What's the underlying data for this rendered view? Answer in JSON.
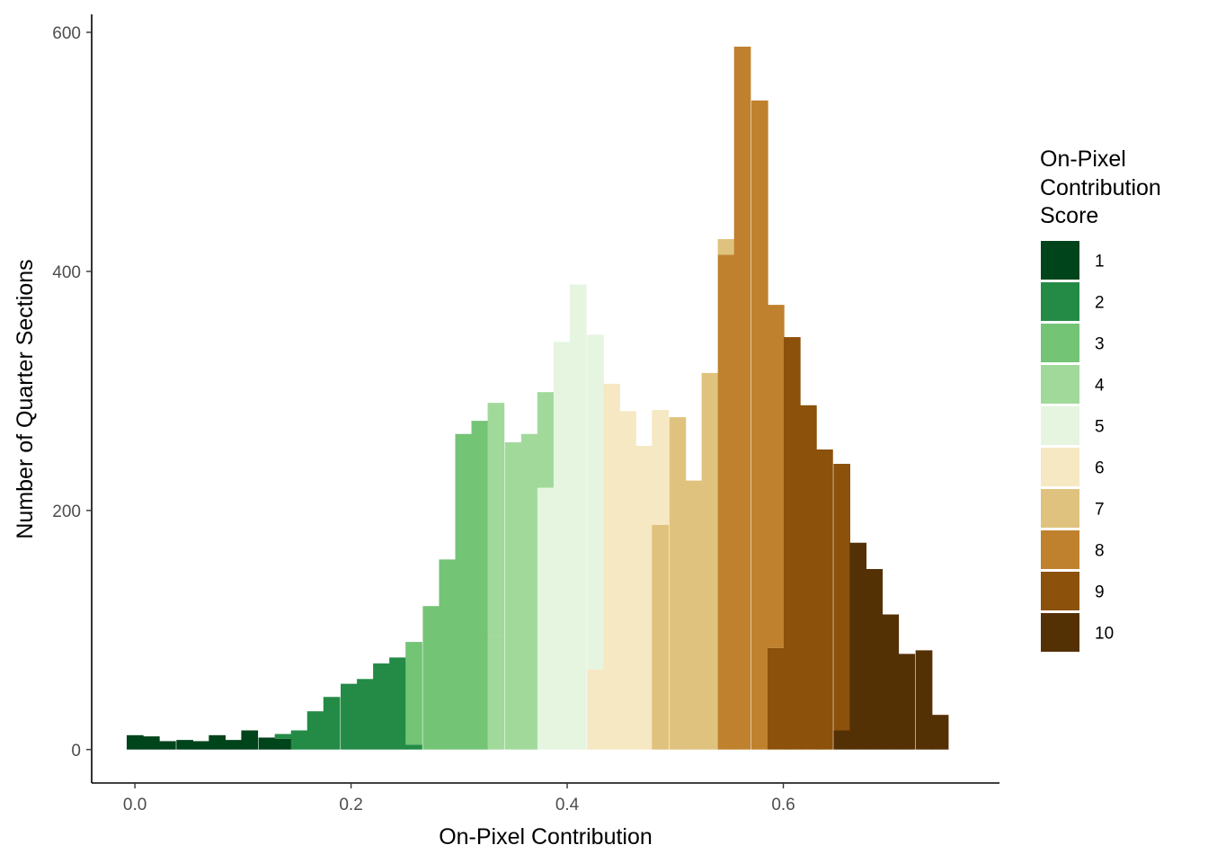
{
  "chart_data": {
    "type": "bar",
    "subtype": "stacked-histogram",
    "xlabel": "On-Pixel Contribution",
    "ylabel": "Number of Quarter Sections",
    "xlim": [
      -0.04,
      0.8
    ],
    "ylim": [
      -28,
      615
    ],
    "x_ticks": [
      0.0,
      0.2,
      0.4,
      0.6
    ],
    "x_tick_labels": [
      "0.0",
      "0.2",
      "0.4",
      "0.6"
    ],
    "y_ticks": [
      0,
      200,
      400,
      600
    ],
    "y_tick_labels": [
      "0",
      "200",
      "400",
      "600"
    ],
    "bin_width": 0.0152,
    "grid": false,
    "legend": {
      "title_lines": [
        "On-Pixel",
        "Contribution",
        "Score"
      ],
      "position": "right",
      "items": [
        {
          "label": "1",
          "color": "#00441b"
        },
        {
          "label": "2",
          "color": "#238b45"
        },
        {
          "label": "3",
          "color": "#74c476"
        },
        {
          "label": "4",
          "color": "#a1d99b"
        },
        {
          "label": "5",
          "color": "#e5f5e0"
        },
        {
          "label": "6",
          "color": "#f6e8c3"
        },
        {
          "label": "7",
          "color": "#dfc27d"
        },
        {
          "label": "8",
          "color": "#bf812d"
        },
        {
          "label": "9",
          "color": "#8c510a"
        },
        {
          "label": "10",
          "color": "#543005"
        }
      ]
    },
    "bins": [
      {
        "x": 0.0,
        "segments": [
          {
            "score": 1,
            "count": 12
          }
        ]
      },
      {
        "x": 0.015,
        "segments": [
          {
            "score": 1,
            "count": 11
          }
        ]
      },
      {
        "x": 0.03,
        "segments": [
          {
            "score": 1,
            "count": 7
          }
        ]
      },
      {
        "x": 0.046,
        "segments": [
          {
            "score": 1,
            "count": 8
          }
        ]
      },
      {
        "x": 0.061,
        "segments": [
          {
            "score": 1,
            "count": 7
          }
        ]
      },
      {
        "x": 0.076,
        "segments": [
          {
            "score": 1,
            "count": 12
          }
        ]
      },
      {
        "x": 0.091,
        "segments": [
          {
            "score": 1,
            "count": 8
          }
        ]
      },
      {
        "x": 0.106,
        "segments": [
          {
            "score": 1,
            "count": 16
          }
        ]
      },
      {
        "x": 0.122,
        "segments": [
          {
            "score": 1,
            "count": 10
          }
        ]
      },
      {
        "x": 0.137,
        "segments": [
          {
            "score": 1,
            "count": 9
          },
          {
            "score": 2,
            "count": 4
          }
        ]
      },
      {
        "x": 0.152,
        "segments": [
          {
            "score": 2,
            "count": 16
          }
        ]
      },
      {
        "x": 0.167,
        "segments": [
          {
            "score": 2,
            "count": 32
          }
        ]
      },
      {
        "x": 0.182,
        "segments": [
          {
            "score": 2,
            "count": 44
          }
        ]
      },
      {
        "x": 0.198,
        "segments": [
          {
            "score": 2,
            "count": 55
          }
        ]
      },
      {
        "x": 0.213,
        "segments": [
          {
            "score": 2,
            "count": 59
          }
        ]
      },
      {
        "x": 0.228,
        "segments": [
          {
            "score": 2,
            "count": 72
          }
        ]
      },
      {
        "x": 0.243,
        "segments": [
          {
            "score": 2,
            "count": 77
          }
        ]
      },
      {
        "x": 0.258,
        "segments": [
          {
            "score": 2,
            "count": 4
          },
          {
            "score": 3,
            "count": 86
          }
        ]
      },
      {
        "x": 0.274,
        "segments": [
          {
            "score": 3,
            "count": 120
          }
        ]
      },
      {
        "x": 0.289,
        "segments": [
          {
            "score": 3,
            "count": 159
          }
        ]
      },
      {
        "x": 0.304,
        "segments": [
          {
            "score": 3,
            "count": 264
          }
        ]
      },
      {
        "x": 0.319,
        "segments": [
          {
            "score": 3,
            "count": 275
          }
        ]
      },
      {
        "x": 0.334,
        "segments": [
          {
            "score": 4,
            "count": 95
          },
          {
            "score": 3,
            "count": 0
          },
          {
            "score": 4,
            "count": 195
          }
        ]
      },
      {
        "x": 0.35,
        "segments": [
          {
            "score": 4,
            "count": 257
          }
        ]
      },
      {
        "x": 0.365,
        "segments": [
          {
            "score": 4,
            "count": 264
          }
        ]
      },
      {
        "x": 0.38,
        "segments": [
          {
            "score": 5,
            "count": 219
          },
          {
            "score": 4,
            "count": 80
          }
        ]
      },
      {
        "x": 0.395,
        "segments": [
          {
            "score": 5,
            "count": 341
          }
        ]
      },
      {
        "x": 0.41,
        "segments": [
          {
            "score": 5,
            "count": 389
          }
        ]
      },
      {
        "x": 0.426,
        "segments": [
          {
            "score": 6,
            "count": 67
          },
          {
            "score": 5,
            "count": 280
          }
        ]
      },
      {
        "x": 0.441,
        "segments": [
          {
            "score": 6,
            "count": 306
          }
        ]
      },
      {
        "x": 0.456,
        "segments": [
          {
            "score": 6,
            "count": 283
          }
        ]
      },
      {
        "x": 0.471,
        "segments": [
          {
            "score": 6,
            "count": 254
          }
        ]
      },
      {
        "x": 0.486,
        "segments": [
          {
            "score": 7,
            "count": 188
          },
          {
            "score": 6,
            "count": 96
          }
        ]
      },
      {
        "x": 0.502,
        "segments": [
          {
            "score": 7,
            "count": 278
          }
        ]
      },
      {
        "x": 0.517,
        "segments": [
          {
            "score": 7,
            "count": 225
          }
        ]
      },
      {
        "x": 0.532,
        "segments": [
          {
            "score": 7,
            "count": 315
          }
        ]
      },
      {
        "x": 0.547,
        "segments": [
          {
            "score": 8,
            "count": 414
          },
          {
            "score": 7,
            "count": 13
          }
        ]
      },
      {
        "x": 0.562,
        "segments": [
          {
            "score": 8,
            "count": 588
          }
        ]
      },
      {
        "x": 0.578,
        "segments": [
          {
            "score": 8,
            "count": 543
          }
        ]
      },
      {
        "x": 0.593,
        "segments": [
          {
            "score": 9,
            "count": 85
          },
          {
            "score": 8,
            "count": 287
          }
        ]
      },
      {
        "x": 0.608,
        "segments": [
          {
            "score": 9,
            "count": 345
          }
        ]
      },
      {
        "x": 0.623,
        "segments": [
          {
            "score": 9,
            "count": 288
          }
        ]
      },
      {
        "x": 0.638,
        "segments": [
          {
            "score": 9,
            "count": 251
          }
        ]
      },
      {
        "x": 0.654,
        "segments": [
          {
            "score": 10,
            "count": 16
          },
          {
            "score": 9,
            "count": 223
          }
        ]
      },
      {
        "x": 0.669,
        "segments": [
          {
            "score": 10,
            "count": 173
          }
        ]
      },
      {
        "x": 0.684,
        "segments": [
          {
            "score": 10,
            "count": 151
          }
        ]
      },
      {
        "x": 0.699,
        "segments": [
          {
            "score": 10,
            "count": 113
          }
        ]
      },
      {
        "x": 0.714,
        "segments": [
          {
            "score": 10,
            "count": 80
          }
        ]
      },
      {
        "x": 0.73,
        "segments": [
          {
            "score": 10,
            "count": 83
          }
        ]
      },
      {
        "x": 0.745,
        "segments": [
          {
            "score": 10,
            "count": 29
          }
        ]
      }
    ]
  }
}
